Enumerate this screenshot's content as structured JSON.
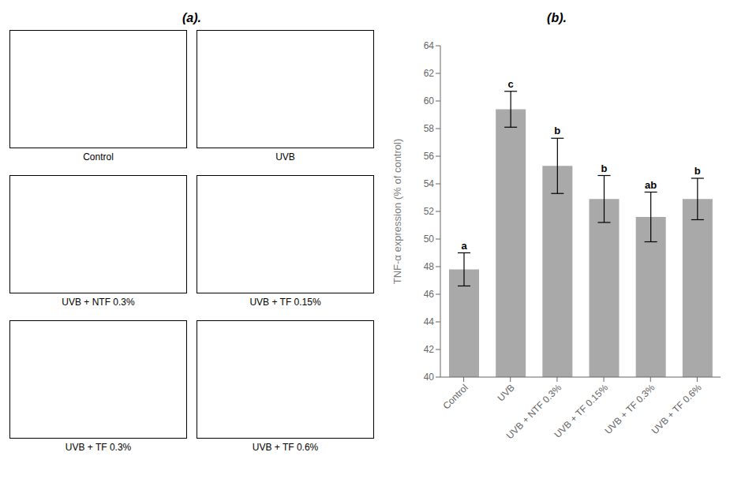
{
  "chart_data": [
    {
      "type": "image_grid",
      "title": "(a).",
      "categories": [
        "Control",
        "UVB",
        "UVB + NTF 0.3%",
        "UVB + TF 0.15%",
        "UVB + TF 0.3%",
        "UVB + TF 0.6%"
      ],
      "color": "#ffffff"
    },
    {
      "type": "bar",
      "title": "(b).",
      "categories": [
        "Control",
        "UVB",
        "UVB + NTF 0.3%",
        "UVB + TF 0.15%",
        "UVB + TF 0.3%",
        "UVB + TF 0.6%"
      ],
      "values": [
        47.8,
        59.4,
        55.3,
        52.9,
        51.6,
        52.9
      ],
      "errors": [
        1.2,
        1.3,
        2.0,
        1.7,
        1.8,
        1.5
      ],
      "annotations": [
        "a",
        "c",
        "b",
        "b",
        "ab",
        "b"
      ],
      "color": "#a9a9a9",
      "ylabel": "TNF-α expression (% of control)",
      "ylim": [
        40,
        64
      ],
      "yticks": [
        40,
        42,
        44,
        46,
        48,
        50,
        52,
        54,
        56,
        58,
        60,
        62,
        64
      ],
      "grid": false
    }
  ]
}
